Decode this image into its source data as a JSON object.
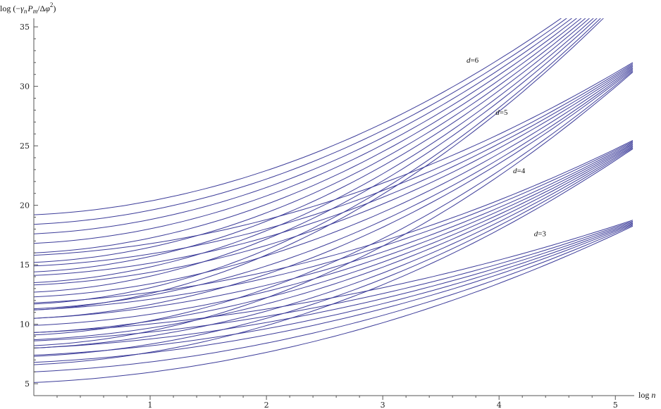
{
  "chart_data": {
    "type": "line",
    "title": "",
    "xlabel": "log n",
    "xlabel_parts": {
      "prefix": "log ",
      "var": "n"
    },
    "ylabel": "log (−γnPm/Δφ2)",
    "ylabel_parts": {
      "prefix": "log (−",
      "gamma": "γ",
      "gamma_sub": "n",
      "p": "P",
      "p_sub": "m",
      "slash": "/Δ",
      "phi": "φ",
      "phi_sup": "2",
      "close": ")"
    },
    "xlim": [
      0,
      5.15
    ],
    "ylim": [
      4,
      35.6
    ],
    "xticks": [
      1,
      2,
      3,
      4,
      5
    ],
    "yticks": [
      5,
      10,
      15,
      20,
      25,
      30,
      35
    ],
    "grid": false,
    "line_color": "#3c3c99",
    "families": [
      {
        "label": "d=6",
        "label_var": "d",
        "label_value": "=6",
        "label_at": [
          3.72,
          32.0
        ],
        "intercepts": [
          11.2,
          11.7,
          12.7,
          13.5,
          14.4,
          15.2,
          16.0,
          16.8,
          17.6,
          18.4,
          19.2
        ],
        "slope0": 0.45,
        "end_value": 39.2,
        "end_spread": 2.0,
        "x_end": 5.15
      },
      {
        "label": "d=5",
        "label_var": "d",
        "label_value": "=5",
        "label_at": [
          3.97,
          27.6
        ],
        "intercepts": [
          8.2,
          9.1,
          10.5,
          11.3,
          12.3,
          13.3,
          14.1,
          14.9,
          15.8
        ],
        "slope0": 0.45,
        "end_value": 31.6,
        "end_spread": 0.8,
        "x_end": 5.15
      },
      {
        "label": "d=4",
        "label_var": "d",
        "label_value": "=4",
        "label_at": [
          4.12,
          22.7
        ],
        "intercepts": [
          6.6,
          7.3,
          8.0,
          8.7,
          9.3,
          9.9,
          10.5,
          11.2,
          11.8
        ],
        "slope0": 0.45,
        "end_value": 25.1,
        "end_spread": 0.7,
        "x_end": 5.15
      },
      {
        "label": "d=3",
        "label_var": "d",
        "label_value": "=3",
        "label_at": [
          4.3,
          17.4
        ],
        "intercepts": [
          5.1,
          6.0,
          6.8,
          7.4,
          8.0,
          8.6,
          9.3
        ],
        "slope0": 0.45,
        "end_value": 18.5,
        "end_spread": 0.5,
        "x_end": 5.15
      }
    ]
  }
}
